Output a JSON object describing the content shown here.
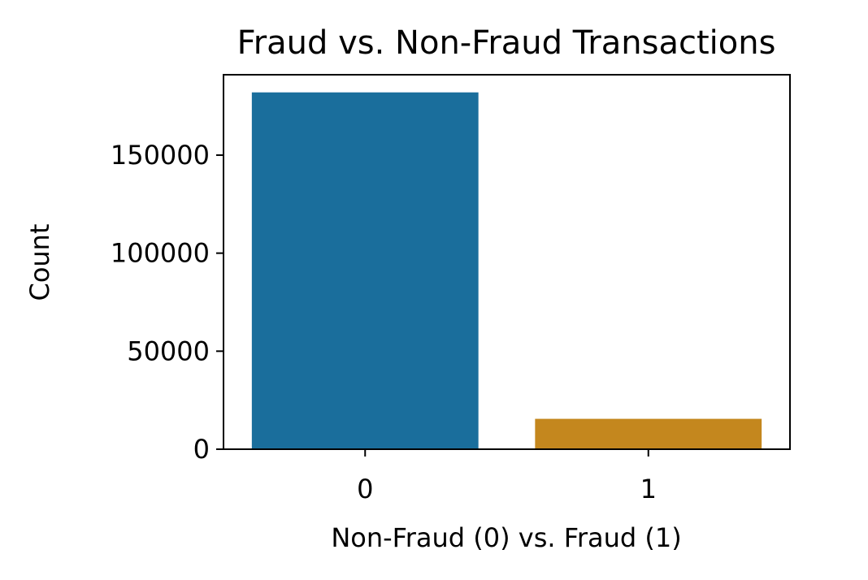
{
  "chart_data": {
    "type": "bar",
    "title": "Fraud vs. Non-Fraud Transactions",
    "xlabel": "Non-Fraud (0) vs. Fraud (1)",
    "ylabel": "Count",
    "categories": [
      "0",
      "1"
    ],
    "values": [
      182000,
      15500
    ],
    "colors": [
      "#1a6e9c",
      "#c4871e"
    ],
    "ylim": [
      0,
      191000
    ],
    "yticks": [
      0,
      50000,
      100000,
      150000
    ],
    "ytick_labels": [
      "0",
      "50000",
      "100000",
      "150000"
    ],
    "grid": false,
    "legend": "none"
  }
}
